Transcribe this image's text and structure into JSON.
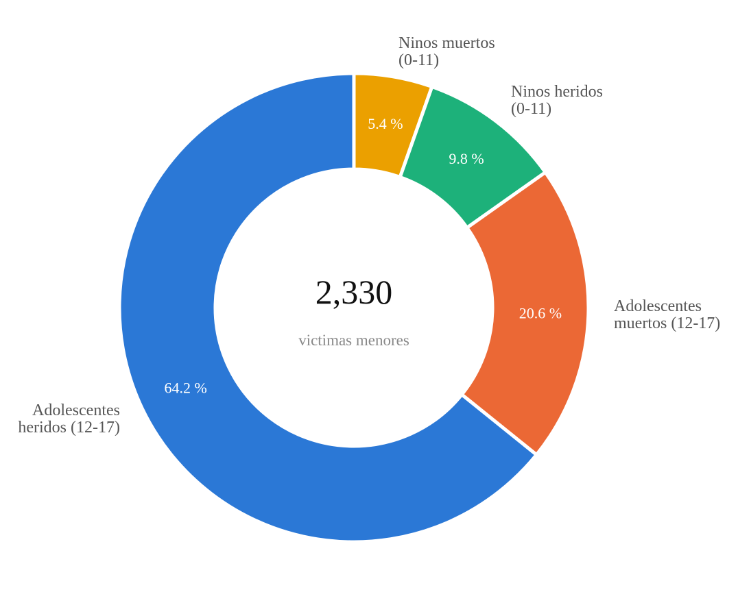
{
  "chart_data": {
    "type": "pie",
    "donut": true,
    "center": {
      "total": "2,330",
      "subtitle": "victimas menores"
    },
    "slices": [
      {
        "label_lines": [
          "Ninos muertos",
          "(0-11)"
        ],
        "value": 5.4,
        "percent_label": "5.4 %",
        "color": "#EBA000"
      },
      {
        "label_lines": [
          "Ninos heridos",
          "(0-11)"
        ],
        "value": 9.8,
        "percent_label": "9.8 %",
        "color": "#1DB17A"
      },
      {
        "label_lines": [
          "Adolescentes",
          "muertos (12-17)"
        ],
        "value": 20.6,
        "percent_label": "20.6 %",
        "color": "#EB6835"
      },
      {
        "label_lines": [
          "Adolescentes",
          "heridos (12-17)"
        ],
        "value": 64.2,
        "percent_label": "64.2 %",
        "color": "#2B78D6"
      }
    ],
    "start_angle": "12 o'clock",
    "direction": "clockwise",
    "legend": "none"
  }
}
